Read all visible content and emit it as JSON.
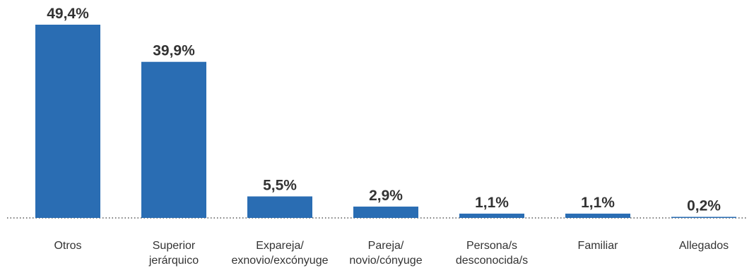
{
  "chart_data": {
    "type": "bar",
    "title": "",
    "xlabel": "",
    "ylabel": "",
    "ylim": [
      0,
      49.4
    ],
    "grid": false,
    "color": "#2a6db3",
    "categories": [
      [
        "Otros"
      ],
      [
        "Superior",
        "jerárquico"
      ],
      [
        "Expareja/",
        "exnovio/excónyuge"
      ],
      [
        "Pareja/",
        "novio/cónyuge"
      ],
      [
        "Persona/s",
        "desconocida/s"
      ],
      [
        "Familiar"
      ],
      [
        "Allegados"
      ]
    ],
    "values": [
      49.4,
      39.9,
      5.5,
      2.9,
      1.1,
      1.1,
      0.2
    ],
    "value_labels": [
      "49,4%",
      "39,9%",
      "5,5%",
      "2,9%",
      "1,1%",
      "1,1%",
      "0,2%"
    ]
  }
}
